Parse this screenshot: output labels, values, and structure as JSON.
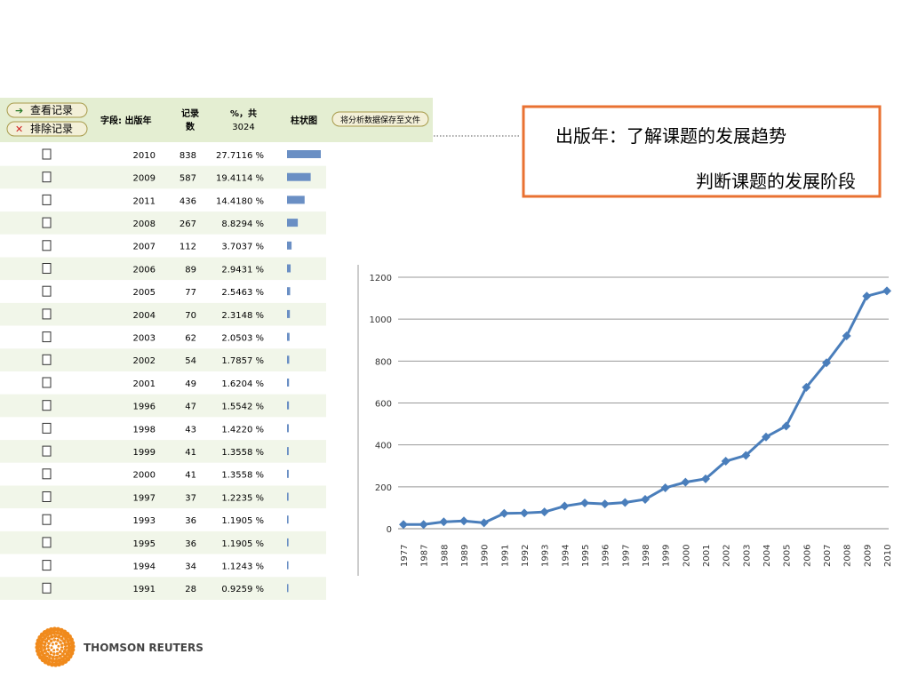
{
  "toolbar": {
    "view_button": "查看记录",
    "exclude_button": "排除记录",
    "field_header": "字段: 出版年",
    "count_header": [
      "记录",
      "数"
    ],
    "percent_header": [
      "%，共",
      "3024"
    ],
    "bar_header": "柱状图",
    "save_button": "将分析数据保存至文件"
  },
  "table": {
    "rows": [
      [
        "2010",
        838,
        "27.7116 %"
      ],
      [
        "2009",
        587,
        "19.4114 %"
      ],
      [
        "2011",
        436,
        "14.4180 %"
      ],
      [
        "2008",
        267,
        "8.8294 %"
      ],
      [
        "2007",
        112,
        "3.7037 %"
      ],
      [
        "2006",
        89,
        "2.9431 %"
      ],
      [
        "2005",
        77,
        "2.5463 %"
      ],
      [
        "2004",
        70,
        "2.3148 %"
      ],
      [
        "2003",
        62,
        "2.0503 %"
      ],
      [
        "2002",
        54,
        "1.7857 %"
      ],
      [
        "2001",
        49,
        "1.6204 %"
      ],
      [
        "1996",
        47,
        "1.5542 %"
      ],
      [
        "1998",
        43,
        "1.4220 %"
      ],
      [
        "1999",
        41,
        "1.3558 %"
      ],
      [
        "2000",
        41,
        "1.3558 %"
      ],
      [
        "1997",
        37,
        "1.2235 %"
      ],
      [
        "1993",
        36,
        "1.1905 %"
      ],
      [
        "1995",
        36,
        "1.1905 %"
      ],
      [
        "1994",
        34,
        "1.1243 %"
      ],
      [
        "1991",
        28,
        "0.9259 %"
      ]
    ],
    "bar_color": "#6a8fc4"
  },
  "callout": {
    "line1": "出版年：了解课题的发展趋势",
    "line2": "判断课题的发展阶段"
  },
  "logo": {
    "text": "THOMSON REUTERS"
  },
  "chart_data": {
    "type": "line",
    "categories": [
      "1977",
      "1987",
      "1988",
      "1989",
      "1990",
      "1991",
      "1992",
      "1993",
      "1994",
      "1995",
      "1996",
      "1997",
      "1998",
      "1999",
      "2000",
      "2001",
      "2002",
      "2003",
      "2004",
      "2005",
      "2006",
      "2007",
      "2008",
      "2009",
      "2010"
    ],
    "series": [
      {
        "color": "#4a7ebb",
        "values": [
          20,
          20,
          33,
          37,
          28,
          73,
          75,
          80,
          108,
          123,
          118,
          125,
          140,
          195,
          222,
          238,
          322,
          350,
          438,
          490,
          675,
          792,
          920,
          1110,
          1135
        ]
      }
    ],
    "ylim": [
      0,
      1200
    ],
    "yticks": [
      0,
      200,
      400,
      600,
      800,
      1000,
      1200
    ],
    "grid": true
  }
}
